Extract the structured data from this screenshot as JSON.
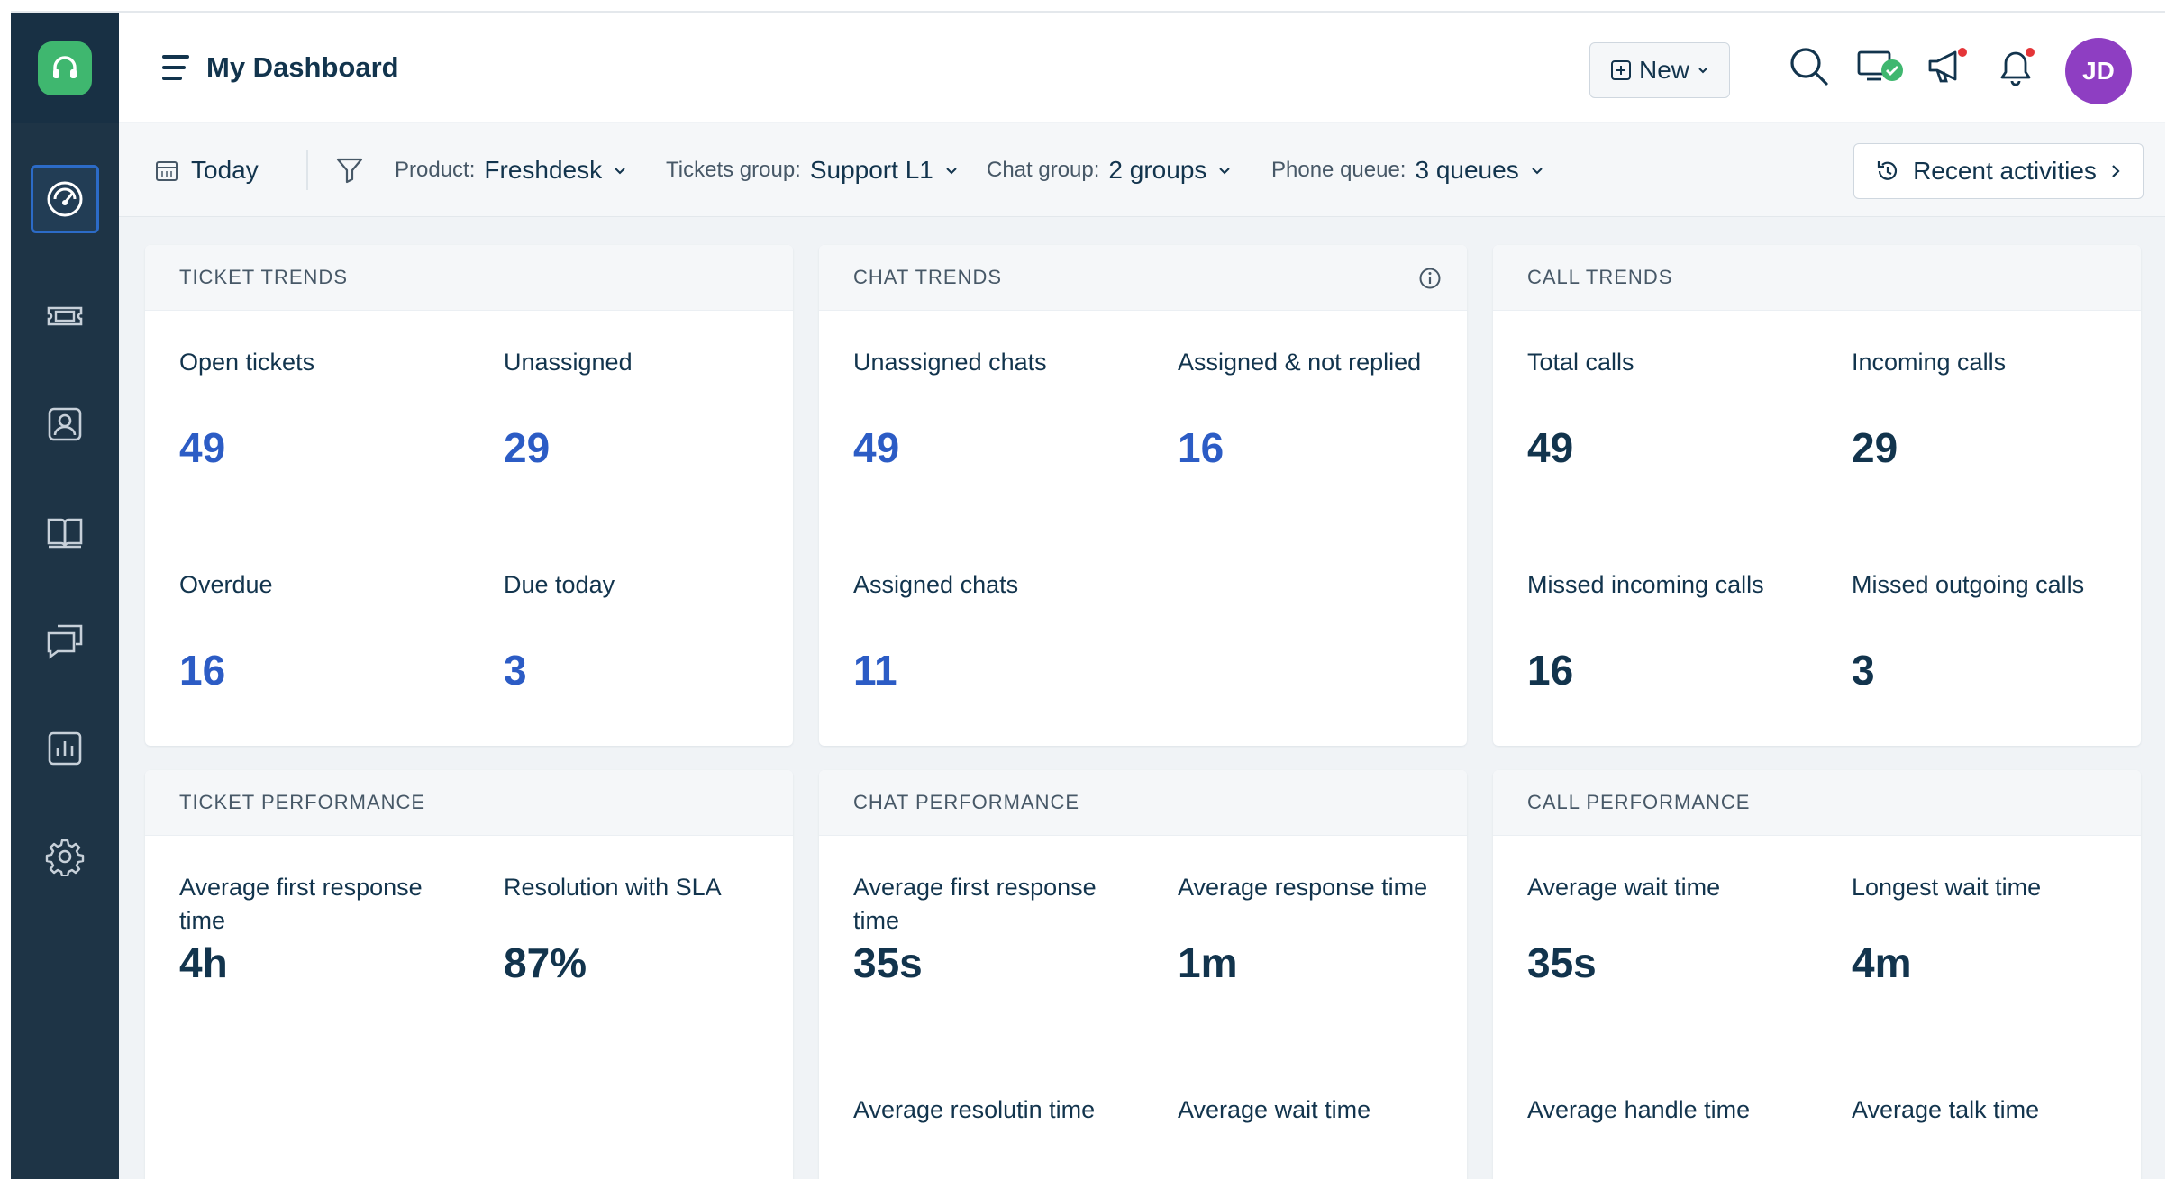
{
  "header": {
    "title": "My Dashboard",
    "new_label": "New",
    "avatar_initials": "JD"
  },
  "filters": {
    "date": "Today",
    "product_label": "Product:",
    "product_value": "Freshdesk",
    "tickets_group_label": "Tickets group:",
    "tickets_group_value": "Support L1",
    "chat_group_label": "Chat group:",
    "chat_group_value": "2 groups",
    "phone_queue_label": "Phone queue:",
    "phone_queue_value": "3 queues",
    "recent_label": "Recent activities"
  },
  "sidebar": {
    "items": [
      "dashboard-icon",
      "tickets-icon",
      "contacts-icon",
      "knowledge-base-icon",
      "conversations-icon",
      "analytics-icon",
      "settings-icon"
    ]
  },
  "cards": {
    "ticket_trends": {
      "title": "TICKET TRENDS",
      "open_label": "Open tickets",
      "open_value": "49",
      "unassigned_label": "Unassigned",
      "unassigned_value": "29",
      "overdue_label": "Overdue",
      "overdue_value": "16",
      "due_label": "Due today",
      "due_value": "3"
    },
    "chat_trends": {
      "title": "CHAT TRENDS",
      "unassigned_label": "Unassigned chats",
      "unassigned_value": "49",
      "anr_label": "Assigned & not replied",
      "anr_value": "16",
      "assigned_label": "Assigned chats",
      "assigned_value": "11"
    },
    "call_trends": {
      "title": "CALL TRENDS",
      "total_label": "Total calls",
      "total_value": "49",
      "incoming_label": "Incoming calls",
      "incoming_value": "29",
      "missed_in_label": "Missed incoming calls",
      "missed_in_value": "16",
      "missed_out_label": "Missed outgoing calls",
      "missed_out_value": "3"
    },
    "ticket_perf": {
      "title": "TICKET PERFORMANCE",
      "afr_label": "Average first response time",
      "afr_value": "4h",
      "sla_label": "Resolution with SLA",
      "sla_value": "87%"
    },
    "chat_perf": {
      "title": "CHAT PERFORMANCE",
      "afr_label": "Average first response time",
      "afr_value": "35s",
      "art_label": "Average response time",
      "art_value": "1m",
      "resolution_label": "Average resolutin time",
      "wait_label": "Average wait time"
    },
    "call_perf": {
      "title": "CALL PERFORMANCE",
      "wait_label": "Average wait time",
      "wait_value": "35s",
      "longest_label": "Longest wait time",
      "longest_value": "4m",
      "handle_label": "Average handle time",
      "talk_label": "Average talk time"
    }
  },
  "colors": {
    "sidebar": "#1e3446",
    "accent_blue": "#2c5cc5",
    "avatar": "#8e3ec2",
    "logo": "#3fb76f"
  }
}
